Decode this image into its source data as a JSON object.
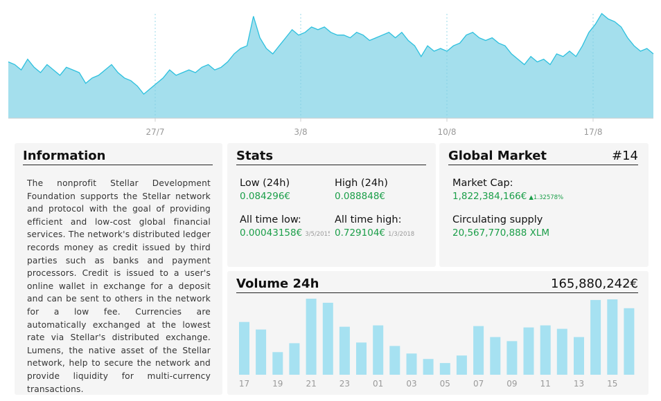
{
  "chart_data": [
    {
      "type": "area",
      "x_tick_labels": [
        "27/7",
        "3/8",
        "10/8",
        "17/8"
      ],
      "values": [
        0.091,
        0.09,
        0.088,
        0.092,
        0.089,
        0.087,
        0.09,
        0.088,
        0.086,
        0.089,
        0.088,
        0.087,
        0.083,
        0.085,
        0.086,
        0.088,
        0.09,
        0.087,
        0.085,
        0.084,
        0.082,
        0.079,
        0.081,
        0.083,
        0.085,
        0.088,
        0.086,
        0.087,
        0.088,
        0.087,
        0.089,
        0.09,
        0.088,
        0.089,
        0.091,
        0.094,
        0.096,
        0.097,
        0.108,
        0.1,
        0.096,
        0.094,
        0.097,
        0.1,
        0.103,
        0.101,
        0.102,
        0.104,
        0.103,
        0.104,
        0.102,
        0.101,
        0.101,
        0.1,
        0.102,
        0.101,
        0.099,
        0.1,
        0.101,
        0.102,
        0.1,
        0.102,
        0.099,
        0.097,
        0.093,
        0.097,
        0.095,
        0.096,
        0.095,
        0.097,
        0.098,
        0.101,
        0.102,
        0.1,
        0.099,
        0.1,
        0.098,
        0.097,
        0.094,
        0.092,
        0.09,
        0.093,
        0.091,
        0.092,
        0.09,
        0.094,
        0.093,
        0.095,
        0.093,
        0.097,
        0.102,
        0.105,
        0.109,
        0.107,
        0.106,
        0.104,
        0.1,
        0.097,
        0.095,
        0.096,
        0.094
      ],
      "series": [
        {
          "values_color": "#a4dfed",
          "line_color": "#2cc0de"
        }
      ]
    },
    {
      "type": "bar",
      "categories": [
        "17",
        "18",
        "19",
        "20",
        "21",
        "22",
        "23",
        "24",
        "01",
        "02",
        "03",
        "04",
        "05",
        "06",
        "07",
        "08",
        "09",
        "10",
        "11",
        "12",
        "13",
        "14",
        "15",
        "16"
      ],
      "x_tick_labels": [
        "17",
        "19",
        "21",
        "23",
        "01",
        "03",
        "05",
        "07",
        "09",
        "11",
        "13",
        "15"
      ],
      "values": [
        77,
        66,
        33,
        46,
        111,
        105,
        70,
        47,
        72,
        42,
        31,
        23,
        17,
        28,
        71,
        55,
        49,
        69,
        72,
        67,
        55,
        109,
        110,
        97
      ],
      "ylim": [
        0,
        115
      ],
      "bar_color": "#a6e1f1"
    }
  ],
  "info": {
    "title": "Information",
    "description": "The nonprofit Stellar Development Foundation supports the Stellar network and protocol with the goal of providing efficient and low-cost global financial services. The network's distributed ledger records money as credit issued by third parties such as banks and payment processors. Credit is issued to a user's online wallet in exchange for a deposit and can be sent to others in the network for a low fee. Currencies are automatically exchanged at the lowest rate via Stellar's distributed exchange. Lumens, the native asset of the Stellar network, help to secure the network and provide liquidity for multi-currency transactions."
  },
  "stats": {
    "title": "Stats",
    "low24_label": "Low (24h)",
    "low24_value": "0.084296€",
    "high24_label": "High (24h)",
    "high24_value": "0.088848€",
    "atl_label": "All time low:",
    "atl_value": "0.00043158€",
    "atl_date": "3/5/2015",
    "ath_label": "All time high:",
    "ath_value": "0.729104€",
    "ath_date": "1/3/2018"
  },
  "global_market": {
    "title": "Global Market",
    "rank": "#14",
    "market_cap_label": "Market Cap:",
    "market_cap_value": "1,822,384,166€",
    "market_cap_change": "▲1.32578%",
    "supply_label": "Circulating supply",
    "supply_value": "20,567,770,888 XLM"
  },
  "volume": {
    "title": "Volume 24h",
    "total": "165,880,242€"
  },
  "colors": {
    "positive": "#1a9e48",
    "panel_bg": "#f5f5f5",
    "area_fill": "#a4dfed",
    "area_line": "#2cc0de"
  }
}
